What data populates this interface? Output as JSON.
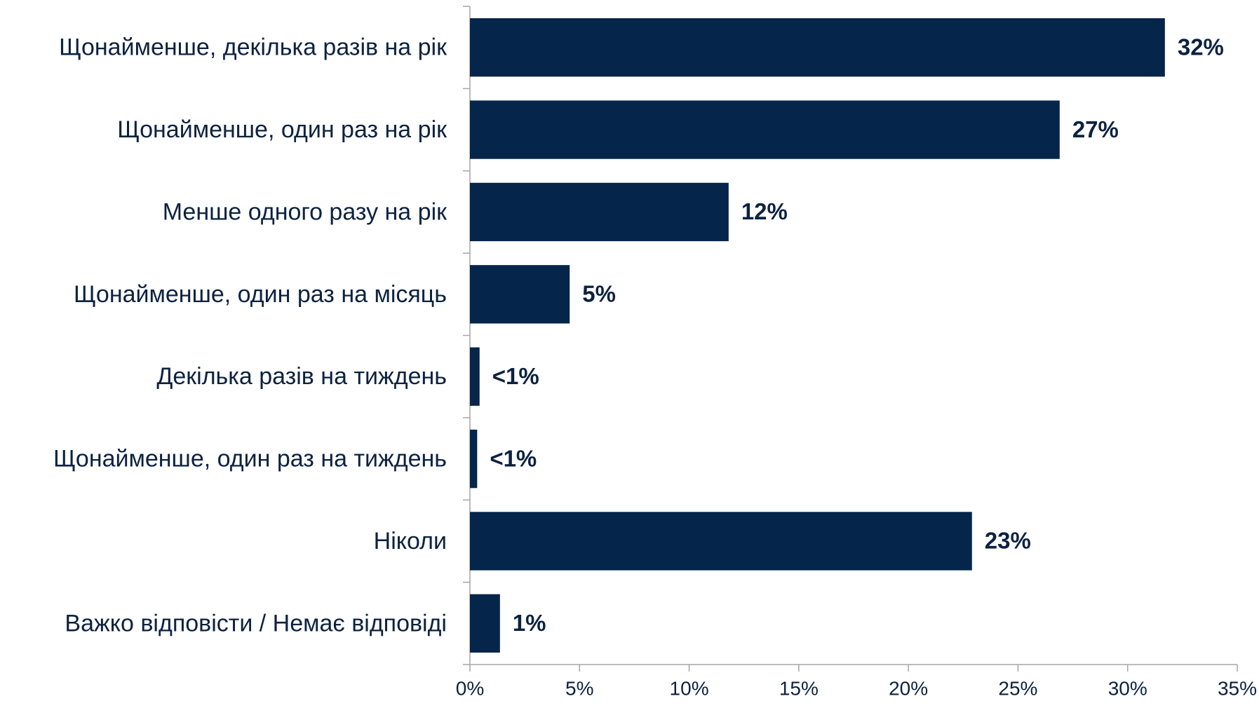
{
  "chart_data": {
    "type": "barh",
    "categories": [
      "Щонайменше, декілька разів на рік",
      "Щонайменше, один раз на рік",
      "Менше одного разу на рік",
      "Щонайменше, один раз на місяць",
      "Декілька разів на тиждень",
      "Щонайменше, один раз на тиждень",
      "Ніколи",
      "Важко відповісти / Немає відповіді"
    ],
    "values": [
      31.7,
      26.9,
      11.8,
      4.55,
      0.44,
      0.33,
      22.9,
      1.37
    ],
    "value_labels": [
      "32%",
      "27%",
      "12%",
      "5%",
      "<1%",
      "<1%",
      "23%",
      "1%"
    ],
    "color": "#06254a",
    "xlim": [
      0,
      35
    ],
    "xticks": [
      {
        "value": 0,
        "label": "0%"
      },
      {
        "value": 5,
        "label": "5%"
      },
      {
        "value": 10,
        "label": "10%"
      },
      {
        "value": 15,
        "label": "15%"
      },
      {
        "value": 20,
        "label": "20%"
      },
      {
        "value": 25,
        "label": "25%"
      },
      {
        "value": 30,
        "label": "30%"
      },
      {
        "value": 35,
        "label": "35%"
      }
    ]
  }
}
